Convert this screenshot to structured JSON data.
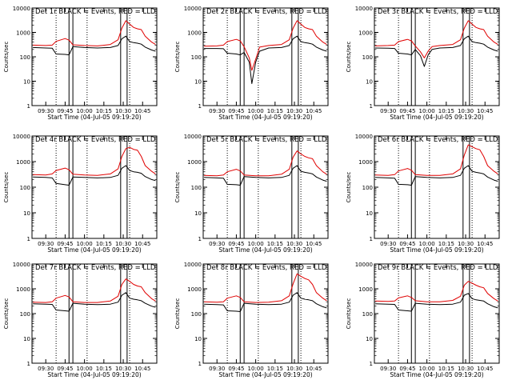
{
  "colors": {
    "events": "#000000",
    "lld": "#e00000",
    "axis": "#000000",
    "background": "#ffffff"
  },
  "axes_common": {
    "ylabel": "Counts/sec",
    "xlabel": "Start Time (04-Jul-05 09:19:20)",
    "yscale": "log",
    "ylim": [
      1,
      10000
    ],
    "ytick_values": [
      1,
      10,
      100,
      1000,
      10000
    ],
    "ytick_labels": [
      "1",
      "10",
      "100",
      "1000",
      "10000"
    ],
    "xlim": [
      "09:19:20",
      "10:56:00"
    ],
    "xtick_values": [
      "09:30",
      "09:45",
      "10:00",
      "10:15",
      "10:30",
      "10:45"
    ],
    "xtick_labels_by_panel": [
      [
        "09:30",
        "09:45",
        "10:00",
        "10:15",
        "10:30",
        "10:45"
      ],
      [
        "09:30",
        "09:45",
        "10:00",
        "10:15",
        "10:30",
        "10:45"
      ],
      [
        "09:30",
        "09:45",
        "10:00",
        "10:15",
        "10:30",
        "10:45"
      ],
      [
        "09:30",
        "09:45",
        "10:00",
        "10:15",
        "10:30",
        "10:45"
      ],
      [
        "09:30",
        "09:45",
        "10:00",
        "10:15",
        "10:30",
        "10:45"
      ],
      [
        "09:30",
        "09:45",
        "10:00",
        "10:15",
        "10:30",
        "10:45"
      ],
      [
        "09:30",
        "09:45",
        "10:00",
        "10:15",
        "10:30",
        "10:45"
      ],
      [
        "09:30",
        "09:45",
        "10:00",
        "10:15",
        "10:30",
        "10:45"
      ],
      [
        "09:30",
        "09:45",
        "10:00",
        "10:15",
        "10:30",
        "10:45"
      ]
    ],
    "dotted_markers": [
      "09:38",
      "10:02",
      "10:35"
    ],
    "solid_markers": [
      "09:48",
      "09:51",
      "10:28",
      "10:33"
    ],
    "grid": false,
    "legend": "none"
  },
  "chart_data": [
    {
      "type": "line",
      "title": "Det 1r BLACK = Events, RED = LLD",
      "series": [
        {
          "role": "events",
          "x": [
            "09:20",
            "09:30",
            "09:35",
            "09:38",
            "09:45",
            "09:48",
            "09:51",
            "10:00",
            "10:10",
            "10:20",
            "10:26",
            "10:29",
            "10:32",
            "10:35",
            "10:38",
            "10:41",
            "10:44",
            "10:47",
            "10:52",
            "10:55"
          ],
          "values": [
            240,
            230,
            225,
            130,
            125,
            120,
            260,
            240,
            230,
            240,
            290,
            550,
            700,
            420,
            380,
            360,
            330,
            250,
            190,
            170
          ]
        },
        {
          "role": "lld",
          "x": [
            "09:20",
            "09:30",
            "09:35",
            "09:38",
            "09:45",
            "09:48",
            "09:51",
            "10:00",
            "10:10",
            "10:20",
            "10:26",
            "10:29",
            "10:32",
            "10:35",
            "10:38",
            "10:41",
            "10:44",
            "10:47",
            "10:52",
            "10:55"
          ],
          "values": [
            300,
            290,
            300,
            430,
            560,
            480,
            310,
            290,
            280,
            320,
            500,
            1500,
            3000,
            2200,
            1600,
            1400,
            1300,
            700,
            400,
            320
          ]
        }
      ]
    },
    {
      "type": "line",
      "title": "Det 2r BLACK = Events, RED = LLD",
      "series": [
        {
          "role": "events",
          "x": [
            "09:20",
            "09:30",
            "09:35",
            "09:38",
            "09:45",
            "09:48",
            "09:51",
            "09:55",
            "09:57",
            "10:00",
            "10:03",
            "10:10",
            "10:20",
            "10:26",
            "10:29",
            "10:32",
            "10:35",
            "10:38",
            "10:41",
            "10:44",
            "10:47",
            "10:52",
            "10:55"
          ],
          "values": [
            220,
            220,
            215,
            140,
            130,
            120,
            150,
            60,
            8,
            60,
            170,
            230,
            240,
            290,
            550,
            700,
            420,
            380,
            360,
            330,
            250,
            190,
            170
          ]
        },
        {
          "role": "lld",
          "x": [
            "09:20",
            "09:30",
            "09:35",
            "09:38",
            "09:45",
            "09:48",
            "09:51",
            "09:55",
            "09:57",
            "10:00",
            "10:03",
            "10:10",
            "10:20",
            "10:26",
            "10:29",
            "10:32",
            "10:35",
            "10:38",
            "10:41",
            "10:44",
            "10:47",
            "10:52",
            "10:55"
          ],
          "values": [
            270,
            280,
            300,
            420,
            520,
            450,
            260,
            90,
            28,
            80,
            250,
            290,
            320,
            500,
            1500,
            3000,
            2200,
            1600,
            1400,
            1300,
            700,
            400,
            320
          ]
        }
      ]
    },
    {
      "type": "line",
      "title": "Det 3r BLACK = Events, RED = LLD",
      "series": [
        {
          "role": "events",
          "x": [
            "09:20",
            "09:30",
            "09:35",
            "09:38",
            "09:45",
            "09:48",
            "09:51",
            "09:55",
            "09:58",
            "10:01",
            "10:04",
            "10:10",
            "10:20",
            "10:26",
            "10:29",
            "10:32",
            "10:35",
            "10:38",
            "10:41",
            "10:44",
            "10:47",
            "10:52",
            "10:55"
          ],
          "values": [
            230,
            225,
            220,
            140,
            130,
            120,
            200,
            110,
            40,
            120,
            200,
            230,
            240,
            290,
            550,
            700,
            420,
            380,
            360,
            330,
            250,
            190,
            170
          ]
        },
        {
          "role": "lld",
          "x": [
            "09:20",
            "09:30",
            "09:35",
            "09:38",
            "09:45",
            "09:48",
            "09:51",
            "09:55",
            "09:58",
            "10:01",
            "10:04",
            "10:10",
            "10:20",
            "10:26",
            "10:29",
            "10:32",
            "10:35",
            "10:38",
            "10:41",
            "10:44",
            "10:47",
            "10:52",
            "10:55"
          ],
          "values": [
            280,
            290,
            300,
            420,
            520,
            450,
            280,
            160,
            90,
            170,
            260,
            290,
            320,
            500,
            1500,
            3000,
            2200,
            1600,
            1400,
            1300,
            700,
            400,
            320
          ]
        }
      ]
    },
    {
      "type": "line",
      "title": "Det 4r BLACK = Events, RED = LLD",
      "series": [
        {
          "role": "events",
          "x": [
            "09:20",
            "09:30",
            "09:35",
            "09:38",
            "09:45",
            "09:48",
            "09:51",
            "10:00",
            "10:10",
            "10:20",
            "10:26",
            "10:29",
            "10:32",
            "10:35",
            "10:38",
            "10:41",
            "10:44",
            "10:47",
            "10:52",
            "10:55"
          ],
          "values": [
            250,
            240,
            230,
            140,
            125,
            120,
            250,
            240,
            230,
            240,
            290,
            550,
            700,
            450,
            400,
            380,
            350,
            260,
            200,
            180
          ]
        },
        {
          "role": "lld",
          "x": [
            "09:20",
            "09:30",
            "09:35",
            "09:38",
            "09:45",
            "09:48",
            "09:51",
            "10:00",
            "10:10",
            "10:20",
            "10:26",
            "10:29",
            "10:32",
            "10:35",
            "10:38",
            "10:41",
            "10:44",
            "10:47",
            "10:52",
            "10:55"
          ],
          "values": [
            310,
            300,
            330,
            450,
            560,
            480,
            320,
            300,
            290,
            330,
            520,
            1600,
            3200,
            3600,
            3000,
            2800,
            1600,
            700,
            420,
            330
          ]
        }
      ]
    },
    {
      "type": "line",
      "title": "Det 5r BLACK = Events, RED = LLD",
      "series": [
        {
          "role": "events",
          "x": [
            "09:20",
            "09:30",
            "09:35",
            "09:38",
            "09:45",
            "09:48",
            "09:51",
            "10:00",
            "10:10",
            "10:20",
            "10:26",
            "10:29",
            "10:32",
            "10:35",
            "10:38",
            "10:41",
            "10:44",
            "10:47",
            "10:52",
            "10:55"
          ],
          "values": [
            240,
            230,
            225,
            130,
            125,
            120,
            260,
            240,
            230,
            240,
            290,
            550,
            700,
            420,
            380,
            360,
            330,
            250,
            190,
            170
          ]
        },
        {
          "role": "lld",
          "x": [
            "09:20",
            "09:30",
            "09:35",
            "09:38",
            "09:45",
            "09:48",
            "09:51",
            "10:00",
            "10:10",
            "10:20",
            "10:26",
            "10:29",
            "10:32",
            "10:35",
            "10:38",
            "10:41",
            "10:44",
            "10:47",
            "10:52",
            "10:55"
          ],
          "values": [
            290,
            280,
            300,
            400,
            500,
            430,
            300,
            280,
            280,
            320,
            500,
            1500,
            2600,
            2000,
            1600,
            1400,
            1300,
            700,
            400,
            320
          ]
        }
      ]
    },
    {
      "type": "line",
      "title": "Det 6r BLACK = Events, RED = LLD",
      "series": [
        {
          "role": "events",
          "x": [
            "09:20",
            "09:30",
            "09:35",
            "09:38",
            "09:45",
            "09:48",
            "09:51",
            "10:00",
            "10:10",
            "10:20",
            "10:26",
            "10:29",
            "10:32",
            "10:35",
            "10:38",
            "10:41",
            "10:44",
            "10:47",
            "10:52",
            "10:55"
          ],
          "values": [
            240,
            230,
            225,
            130,
            125,
            120,
            260,
            240,
            230,
            240,
            290,
            550,
            700,
            420,
            380,
            360,
            330,
            250,
            190,
            170
          ]
        },
        {
          "role": "lld",
          "x": [
            "09:20",
            "09:30",
            "09:35",
            "09:38",
            "09:45",
            "09:48",
            "09:51",
            "10:00",
            "10:10",
            "10:20",
            "10:26",
            "10:29",
            "10:32",
            "10:35",
            "10:38",
            "10:41",
            "10:44",
            "10:47",
            "10:52",
            "10:55"
          ],
          "values": [
            300,
            290,
            310,
            430,
            540,
            460,
            310,
            290,
            290,
            330,
            520,
            1800,
            4500,
            3800,
            3200,
            2900,
            1600,
            700,
            420,
            330
          ]
        }
      ]
    },
    {
      "type": "line",
      "title": "Det 7r BLACK = Events, RED = LLD",
      "series": [
        {
          "role": "events",
          "x": [
            "09:20",
            "09:30",
            "09:35",
            "09:38",
            "09:45",
            "09:48",
            "09:51",
            "10:00",
            "10:10",
            "10:20",
            "10:26",
            "10:29",
            "10:32",
            "10:35",
            "10:38",
            "10:41",
            "10:44",
            "10:47",
            "10:52",
            "10:55"
          ],
          "values": [
            250,
            240,
            235,
            140,
            130,
            125,
            260,
            240,
            230,
            240,
            290,
            550,
            700,
            420,
            380,
            360,
            330,
            260,
            200,
            180
          ]
        },
        {
          "role": "lld",
          "x": [
            "09:20",
            "09:30",
            "09:35",
            "09:38",
            "09:45",
            "09:48",
            "09:51",
            "10:00",
            "10:10",
            "10:20",
            "10:26",
            "10:29",
            "10:32",
            "10:35",
            "10:38",
            "10:41",
            "10:44",
            "10:47",
            "10:52",
            "10:55"
          ],
          "values": [
            290,
            280,
            300,
            420,
            540,
            470,
            300,
            280,
            280,
            320,
            500,
            1500,
            2500,
            2000,
            1500,
            1300,
            1200,
            700,
            400,
            320
          ]
        }
      ]
    },
    {
      "type": "line",
      "title": "Det 8r BLACK = Events, RED = LLD",
      "series": [
        {
          "role": "events",
          "x": [
            "09:20",
            "09:30",
            "09:35",
            "09:38",
            "09:45",
            "09:48",
            "09:51",
            "10:00",
            "10:10",
            "10:20",
            "10:26",
            "10:29",
            "10:32",
            "10:35",
            "10:38",
            "10:41",
            "10:44",
            "10:47",
            "10:52",
            "10:55"
          ],
          "values": [
            240,
            230,
            225,
            130,
            125,
            120,
            260,
            240,
            230,
            240,
            290,
            550,
            700,
            420,
            380,
            360,
            330,
            250,
            190,
            170
          ]
        },
        {
          "role": "lld",
          "x": [
            "09:20",
            "09:30",
            "09:35",
            "09:38",
            "09:45",
            "09:48",
            "09:51",
            "10:00",
            "10:10",
            "10:20",
            "10:26",
            "10:29",
            "10:32",
            "10:35",
            "10:38",
            "10:41",
            "10:44",
            "10:47",
            "10:52",
            "10:55"
          ],
          "values": [
            300,
            290,
            300,
            420,
            520,
            450,
            300,
            280,
            290,
            330,
            520,
            1600,
            4000,
            3200,
            2600,
            2300,
            1500,
            700,
            420,
            330
          ]
        }
      ]
    },
    {
      "type": "line",
      "title": "Det 9r BLACK = Events, RED = LLD",
      "series": [
        {
          "role": "events",
          "x": [
            "09:20",
            "09:30",
            "09:35",
            "09:38",
            "09:45",
            "09:48",
            "09:51",
            "10:00",
            "10:10",
            "10:20",
            "10:26",
            "10:29",
            "10:32",
            "10:35",
            "10:38",
            "10:41",
            "10:44",
            "10:47",
            "10:52",
            "10:55"
          ],
          "values": [
            250,
            240,
            235,
            140,
            130,
            125,
            260,
            240,
            230,
            240,
            290,
            550,
            650,
            400,
            360,
            340,
            320,
            250,
            190,
            170
          ]
        },
        {
          "role": "lld",
          "x": [
            "09:20",
            "09:30",
            "09:35",
            "09:38",
            "09:45",
            "09:48",
            "09:51",
            "10:00",
            "10:10",
            "10:20",
            "10:26",
            "10:29",
            "10:32",
            "10:35",
            "10:38",
            "10:41",
            "10:44",
            "10:47",
            "10:52",
            "10:55"
          ],
          "values": [
            320,
            310,
            320,
            430,
            520,
            450,
            330,
            300,
            300,
            340,
            500,
            1400,
            2000,
            1700,
            1400,
            1200,
            1100,
            650,
            400,
            320
          ]
        }
      ]
    }
  ]
}
